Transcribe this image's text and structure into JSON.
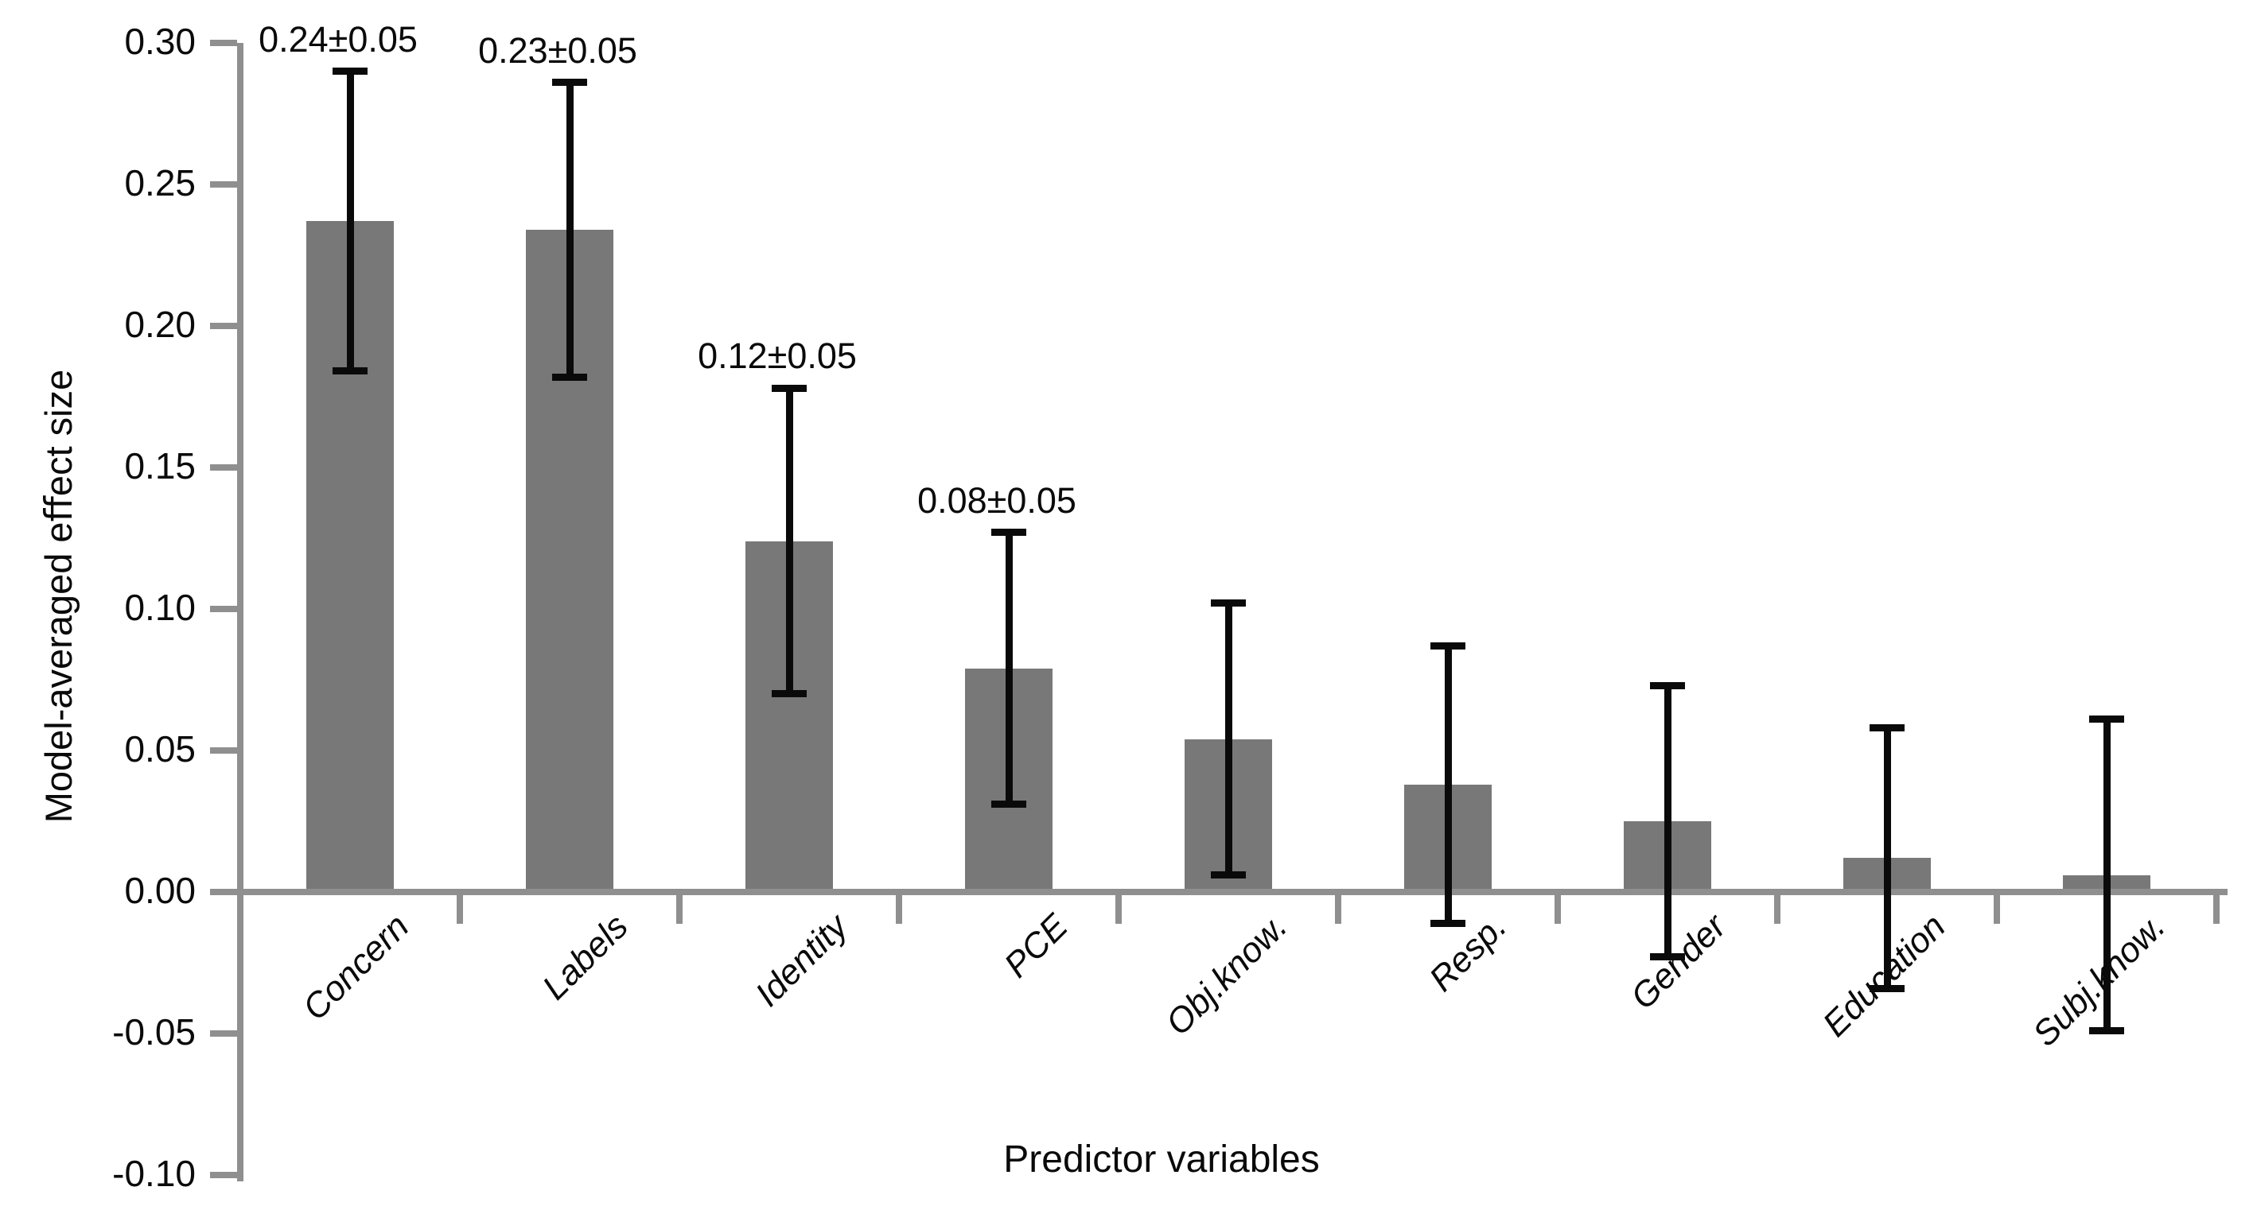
{
  "chart_data": {
    "type": "bar",
    "title": "",
    "xlabel": "Predictor variables",
    "ylabel": "Model-averaged eﬀect size",
    "categories": [
      "Concern",
      "Labels",
      "Identity",
      "PCE",
      "Obj.know.",
      "Resp.",
      "Gender",
      "Education",
      "Subj.know."
    ],
    "values": [
      0.237,
      0.234,
      0.124,
      0.079,
      0.054,
      0.038,
      0.025,
      0.012,
      0.006
    ],
    "error_upper": [
      0.29,
      0.286,
      0.178,
      0.127,
      0.102,
      0.087,
      0.073,
      0.058,
      0.061
    ],
    "error_lower": [
      0.184,
      0.182,
      0.07,
      0.031,
      0.006,
      -0.011,
      -0.023,
      -0.034,
      -0.049
    ],
    "data_labels": [
      "0.24±0.05",
      "0.23±0.05",
      "0.12±0.05",
      "0.08±0.05",
      "",
      "",
      "",
      "",
      ""
    ],
    "ylim": [
      -0.1,
      0.3
    ],
    "ytick_step": 0.05,
    "ytick_labels": [
      "0.30",
      "0.25",
      "0.20",
      "0.15",
      "0.10",
      "0.05",
      "0.00",
      "-0.05",
      "-0.10"
    ],
    "grid": false,
    "legend": false,
    "bar_color": "#787878",
    "axis_color": "#8f8f8f",
    "error_color": "#0a0a0a",
    "text_color": "#0a0a0a",
    "background_color": "#ffffff"
  }
}
